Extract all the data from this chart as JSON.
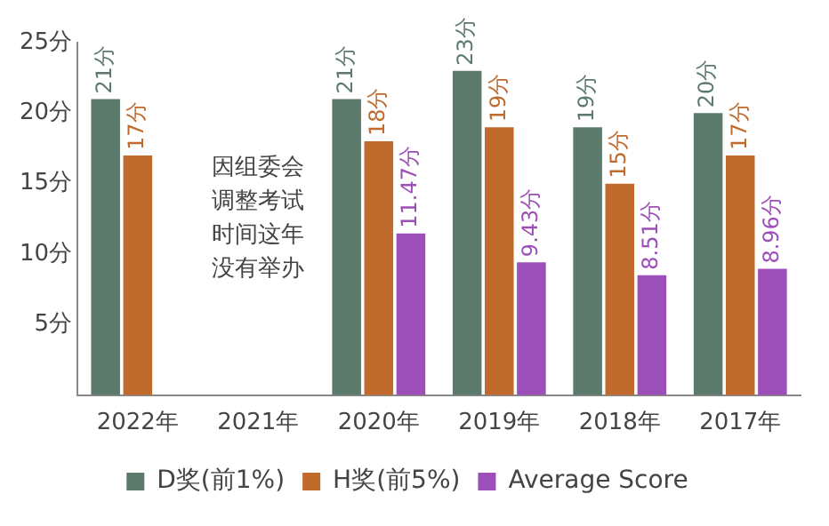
{
  "chart_data": {
    "type": "bar",
    "categories": [
      "2022年",
      "2021年",
      "2020年",
      "2019年",
      "2018年",
      "2017年"
    ],
    "series": [
      {
        "name": "D奖(前1%)",
        "color": "#5b7a6c",
        "values": [
          21,
          null,
          21,
          23,
          19,
          20
        ],
        "value_labels": [
          "21分",
          null,
          "21分",
          "23分",
          "19分",
          "20分"
        ]
      },
      {
        "name": "H奖(前5%)",
        "color": "#c06a2e",
        "values": [
          17,
          null,
          18,
          19,
          15,
          17
        ],
        "value_labels": [
          "17分",
          null,
          "18分",
          "19分",
          "15分",
          "17分"
        ]
      },
      {
        "name": "Average Score",
        "color": "#9c4fb8",
        "values": [
          null,
          null,
          11.47,
          9.43,
          8.51,
          8.96
        ],
        "value_labels": [
          null,
          null,
          "11.47分",
          "9.43分",
          "8.51分",
          "8.96分"
        ]
      }
    ],
    "ylim": [
      0,
      25
    ],
    "yticks": [
      {
        "value": 5,
        "label": "5分"
      },
      {
        "value": 10,
        "label": "10分"
      },
      {
        "value": 15,
        "label": "15分"
      },
      {
        "value": 20,
        "label": "20分"
      },
      {
        "value": 25,
        "label": "25分"
      }
    ],
    "grid": false,
    "legend": "bottom",
    "annotations": [
      "因组委会调整考试时间这年没有举办"
    ]
  }
}
